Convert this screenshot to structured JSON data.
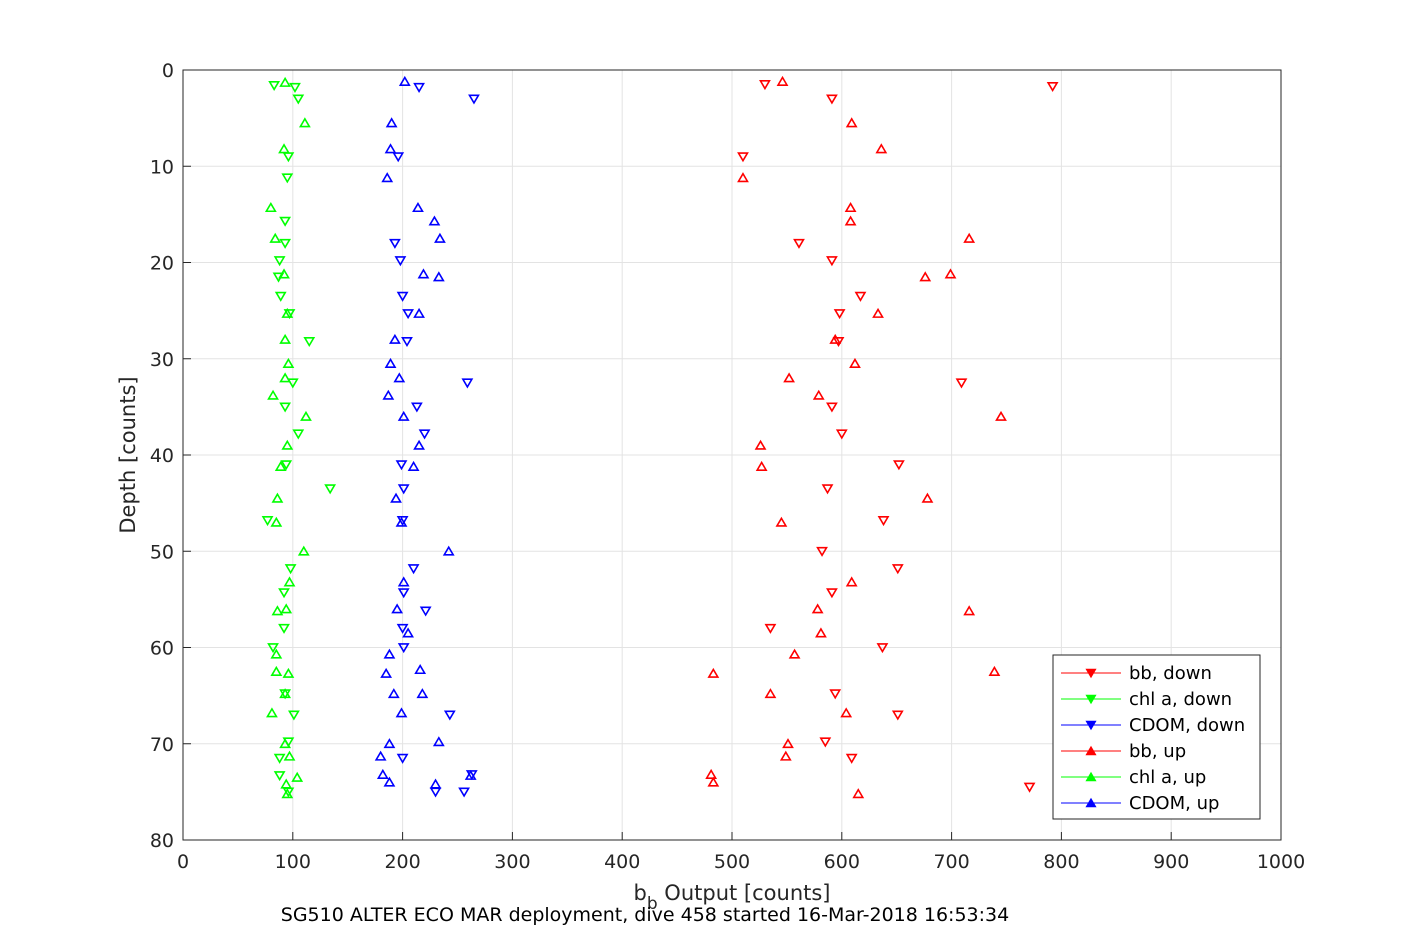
{
  "chart_data": {
    "type": "scatter",
    "caption": "SG510 ALTER ECO MAR deployment, dive 458 started 16-Mar-2018 16:53:34",
    "xlabel_main": "b",
    "xlabel_sub": "b",
    "xlabel_rest": " Output [counts]",
    "ylabel": "Depth [counts]",
    "xlim": [
      0,
      1000
    ],
    "ylim": [
      0,
      80
    ],
    "y_reversed": true,
    "grid": true,
    "legend_position": "bottom-right",
    "x_ticks": [
      "0",
      "100",
      "200",
      "300",
      "400",
      "500",
      "600",
      "700",
      "800",
      "900",
      "1000"
    ],
    "y_ticks": [
      "0",
      "10",
      "20",
      "30",
      "40",
      "50",
      "60",
      "70",
      "80"
    ],
    "series": [
      {
        "name": "bb, down",
        "color": "#ff0000",
        "marker": "down",
        "points": [
          [
            530,
            1.5
          ],
          [
            792,
            1.7
          ],
          [
            591,
            3
          ],
          [
            510,
            9
          ],
          [
            561,
            18
          ],
          [
            591,
            19.8
          ],
          [
            617,
            23.5
          ],
          [
            598,
            25.3
          ],
          [
            597,
            28.2
          ],
          [
            709,
            32.5
          ],
          [
            591,
            35
          ],
          [
            600,
            37.8
          ],
          [
            652,
            41
          ],
          [
            587,
            43.5
          ],
          [
            638,
            46.8
          ],
          [
            582,
            50
          ],
          [
            651,
            51.8
          ],
          [
            591,
            54.3
          ],
          [
            535,
            58
          ],
          [
            637,
            60
          ],
          [
            594,
            64.8
          ],
          [
            651,
            67
          ],
          [
            585,
            69.8
          ],
          [
            609,
            71.5
          ],
          [
            771,
            74.5
          ]
        ]
      },
      {
        "name": "chl a, down",
        "color": "#00ff00",
        "marker": "down",
        "points": [
          [
            83,
            1.6
          ],
          [
            102,
            1.8
          ],
          [
            105,
            3
          ],
          [
            96,
            9
          ],
          [
            95,
            11.2
          ],
          [
            93,
            15.7
          ],
          [
            93,
            18
          ],
          [
            88,
            19.8
          ],
          [
            87,
            21.5
          ],
          [
            89,
            23.5
          ],
          [
            97,
            25.3
          ],
          [
            115,
            28.2
          ],
          [
            100,
            32.5
          ],
          [
            93,
            35
          ],
          [
            105,
            37.8
          ],
          [
            94,
            41
          ],
          [
            134,
            43.5
          ],
          [
            77,
            46.8
          ],
          [
            98,
            51.8
          ],
          [
            92,
            54.3
          ],
          [
            92,
            58
          ],
          [
            82,
            60
          ],
          [
            93,
            64.8
          ],
          [
            101,
            67
          ],
          [
            96,
            69.8
          ],
          [
            88,
            71.5
          ],
          [
            88,
            73.3
          ],
          [
            96,
            75
          ]
        ]
      },
      {
        "name": "CDOM, down",
        "color": "#0000ff",
        "marker": "down",
        "points": [
          [
            215,
            1.8
          ],
          [
            265,
            3
          ],
          [
            196,
            9
          ],
          [
            193,
            18
          ],
          [
            198,
            19.8
          ],
          [
            200,
            23.5
          ],
          [
            205,
            25.3
          ],
          [
            204,
            28.2
          ],
          [
            259,
            32.5
          ],
          [
            213,
            35
          ],
          [
            220,
            37.8
          ],
          [
            199,
            41
          ],
          [
            201,
            43.5
          ],
          [
            200,
            46.8
          ],
          [
            210,
            51.8
          ],
          [
            201,
            54.3
          ],
          [
            221,
            56.2
          ],
          [
            200,
            58
          ],
          [
            201,
            60
          ],
          [
            243,
            67
          ],
          [
            200,
            71.5
          ],
          [
            263,
            73.2
          ],
          [
            230,
            75
          ],
          [
            256,
            75
          ]
        ]
      },
      {
        "name": "bb, up",
        "color": "#ff0000",
        "marker": "up",
        "points": [
          [
            546,
            1.2
          ],
          [
            609,
            5.5
          ],
          [
            636,
            8.2
          ],
          [
            510,
            11.2
          ],
          [
            608,
            14.3
          ],
          [
            608,
            15.7
          ],
          [
            716,
            17.5
          ],
          [
            699,
            21.2
          ],
          [
            676,
            21.5
          ],
          [
            633,
            25.3
          ],
          [
            594,
            28
          ],
          [
            612,
            30.5
          ],
          [
            552,
            32
          ],
          [
            579,
            33.8
          ],
          [
            745,
            36
          ],
          [
            526,
            39
          ],
          [
            527,
            41.2
          ],
          [
            678,
            44.5
          ],
          [
            545,
            47
          ],
          [
            609,
            53.2
          ],
          [
            578,
            56
          ],
          [
            716,
            56.2
          ],
          [
            581,
            58.5
          ],
          [
            557,
            60.7
          ],
          [
            739,
            62.5
          ],
          [
            483,
            62.7
          ],
          [
            535,
            64.8
          ],
          [
            604,
            66.8
          ],
          [
            551,
            70
          ],
          [
            549,
            71.3
          ],
          [
            481,
            73.2
          ],
          [
            483,
            74
          ],
          [
            615,
            75.2
          ]
        ]
      },
      {
        "name": "chl a, up",
        "color": "#00ff00",
        "marker": "up",
        "points": [
          [
            93,
            1.3
          ],
          [
            111,
            5.5
          ],
          [
            92,
            8.2
          ],
          [
            80,
            14.3
          ],
          [
            84,
            17.5
          ],
          [
            92,
            21.2
          ],
          [
            95,
            25.3
          ],
          [
            93,
            28
          ],
          [
            96,
            30.5
          ],
          [
            93,
            32
          ],
          [
            82,
            33.8
          ],
          [
            112,
            36
          ],
          [
            95,
            39
          ],
          [
            89,
            41.2
          ],
          [
            86,
            44.5
          ],
          [
            85,
            47
          ],
          [
            110,
            50
          ],
          [
            97,
            53.2
          ],
          [
            94,
            56
          ],
          [
            86,
            56.2
          ],
          [
            85,
            60.7
          ],
          [
            85,
            62.5
          ],
          [
            96,
            62.7
          ],
          [
            93,
            64.8
          ],
          [
            81,
            66.8
          ],
          [
            93,
            70
          ],
          [
            97,
            71.3
          ],
          [
            104,
            73.5
          ],
          [
            94,
            74.2
          ],
          [
            95,
            75.2
          ]
        ]
      },
      {
        "name": "CDOM, up",
        "color": "#0000ff",
        "marker": "up",
        "points": [
          [
            202,
            1.2
          ],
          [
            190,
            5.5
          ],
          [
            189,
            8.2
          ],
          [
            186,
            11.2
          ],
          [
            214,
            14.3
          ],
          [
            229,
            15.7
          ],
          [
            234,
            17.5
          ],
          [
            219,
            21.2
          ],
          [
            233,
            21.5
          ],
          [
            215,
            25.3
          ],
          [
            193,
            28
          ],
          [
            189,
            30.5
          ],
          [
            197,
            32
          ],
          [
            187,
            33.8
          ],
          [
            201,
            36
          ],
          [
            215,
            39
          ],
          [
            210,
            41.2
          ],
          [
            194,
            44.5
          ],
          [
            199,
            47
          ],
          [
            242,
            50
          ],
          [
            201,
            53.2
          ],
          [
            195,
            56
          ],
          [
            205,
            58.5
          ],
          [
            188,
            60.7
          ],
          [
            216,
            62.3
          ],
          [
            185,
            62.7
          ],
          [
            192,
            64.8
          ],
          [
            218,
            64.8
          ],
          [
            199,
            66.8
          ],
          [
            233,
            69.8
          ],
          [
            188,
            70
          ],
          [
            180,
            71.3
          ],
          [
            182,
            73.2
          ],
          [
            188,
            74
          ],
          [
            230,
            74.2
          ],
          [
            262,
            73.3
          ]
        ]
      }
    ]
  }
}
